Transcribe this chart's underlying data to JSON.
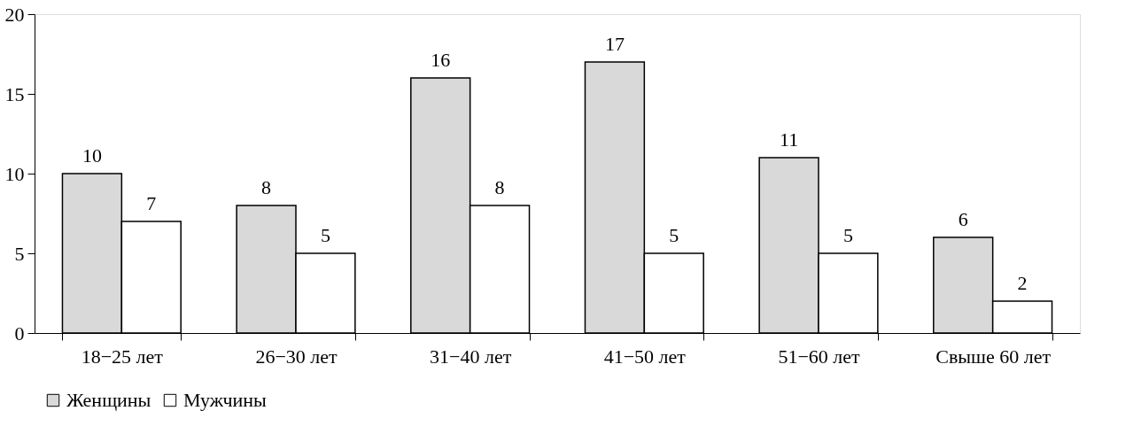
{
  "chart_data": {
    "type": "bar",
    "categories": [
      "18−25 лет",
      "26−30 лет",
      "31−40 лет",
      "41−50 лет",
      "51−60 лет",
      "Свыше 60 лет"
    ],
    "series": [
      {
        "name": "Женщины",
        "color": "#d9d9d9",
        "values": [
          10,
          8,
          16,
          17,
          11,
          6
        ]
      },
      {
        "name": "Мужчины",
        "color": "#ffffff",
        "values": [
          7,
          5,
          8,
          5,
          5,
          2
        ]
      }
    ],
    "ylim": [
      0,
      20
    ],
    "yticks": [
      0,
      5,
      10,
      15,
      20
    ],
    "grid": false,
    "legend": "bottom",
    "data_labels": true
  }
}
